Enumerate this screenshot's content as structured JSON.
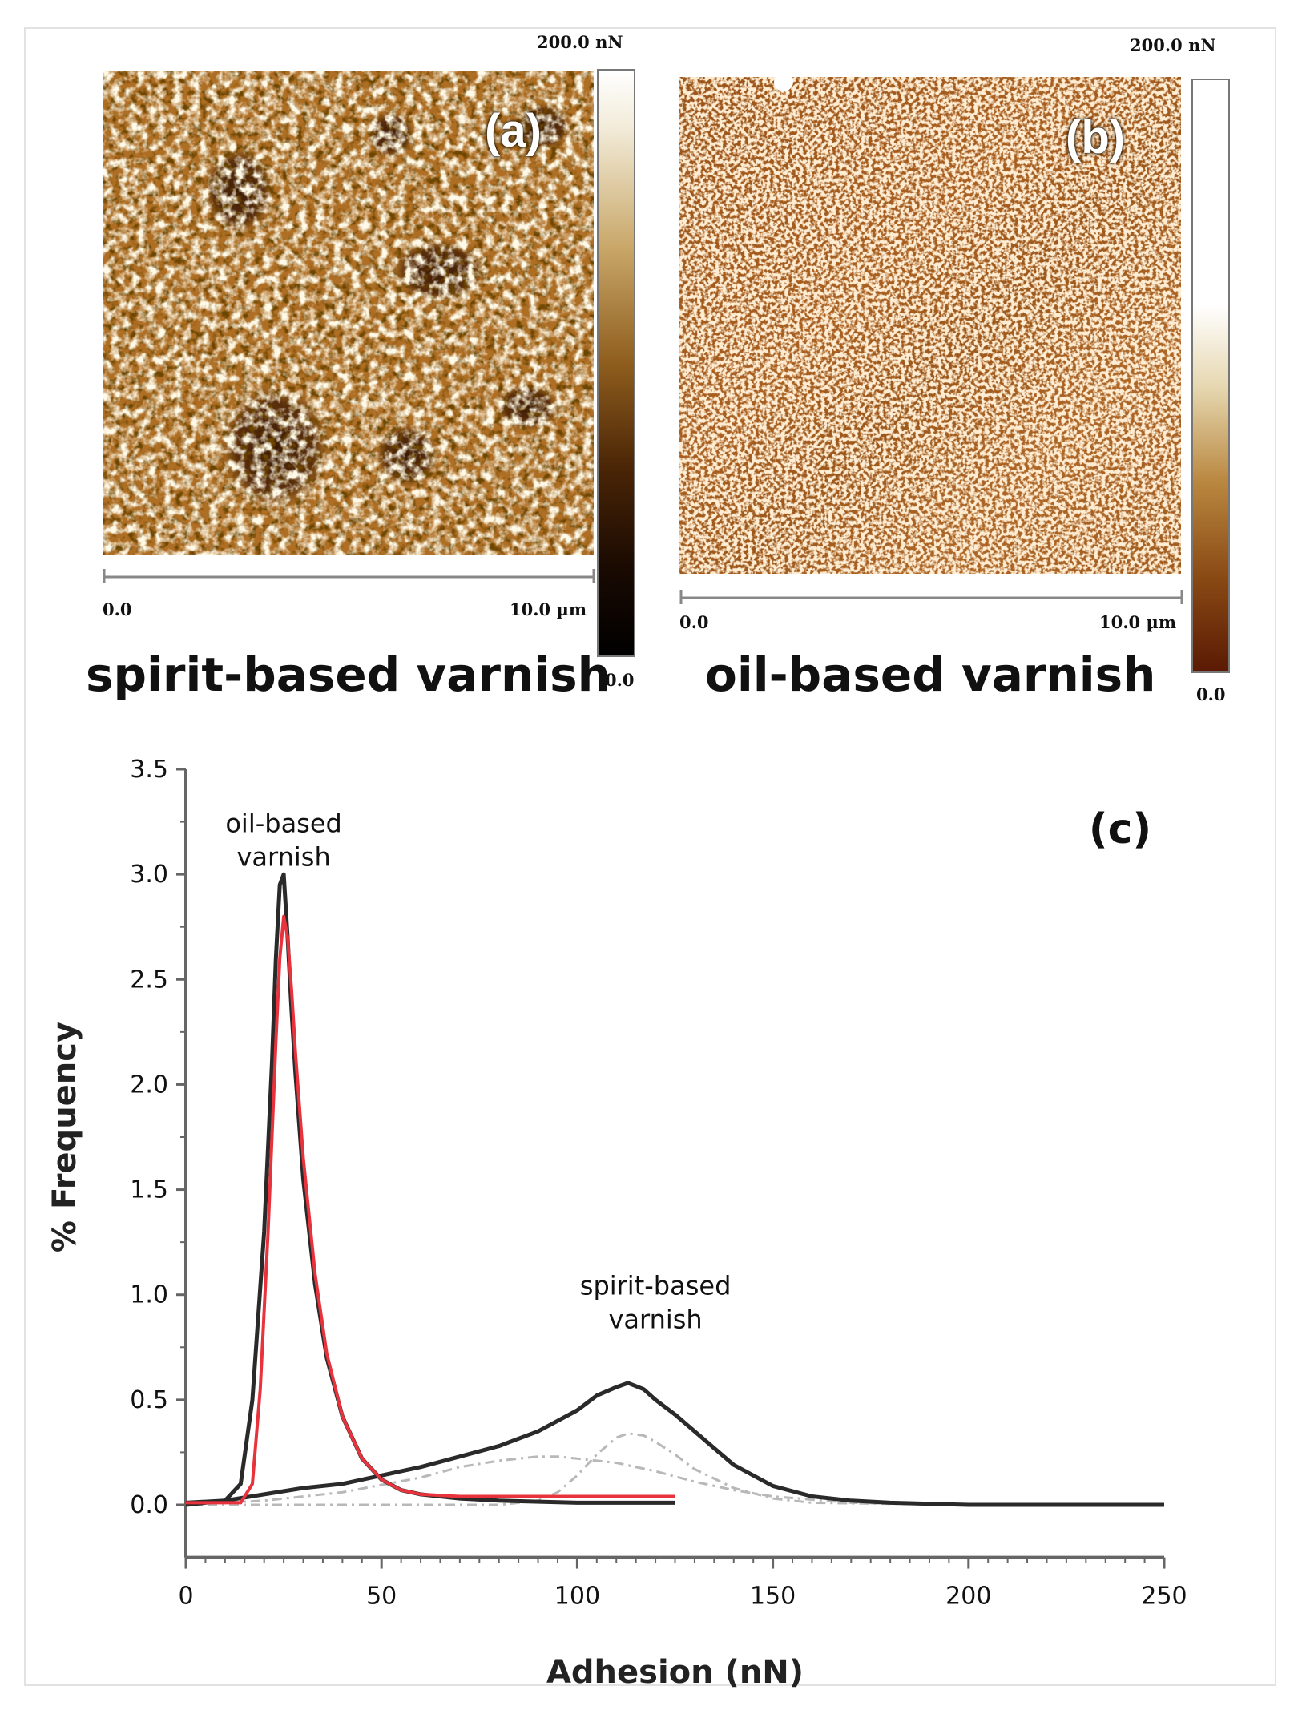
{
  "panel_a": {
    "label": "(a)",
    "caption": "spirit-based varnish",
    "colorbar_top": "200.0 nN",
    "colorbar_bottom": "0.0",
    "scale_start": "0.0",
    "scale_end": "10.0 µm"
  },
  "panel_b": {
    "label": "(b)",
    "caption": "oil-based varnish",
    "colorbar_top": "200.0 nN",
    "colorbar_bottom": "0.0",
    "scale_start": "0.0",
    "scale_end": "10.0 µm"
  },
  "colors": {
    "afm_base": "#a5651e",
    "oil_fit": "#e8323c",
    "data_line": "#2a2a2a",
    "component_line": "#b8b8b8"
  },
  "chart_data": {
    "type": "line",
    "panel_label": "(c)",
    "xlabel": "Adhesion (nN)",
    "ylabel": "% Frequency",
    "xlim": [
      0,
      250
    ],
    "ylim": [
      0,
      3.5
    ],
    "x_ticks": [
      0,
      50,
      100,
      150,
      200,
      250
    ],
    "y_ticks": [
      "0.0",
      "0.5",
      "1.0",
      "1.5",
      "2.0",
      "2.5",
      "3.0",
      "3.5"
    ],
    "annotations": [
      {
        "lines": [
          "oil-based",
          "varnish"
        ],
        "x": 25,
        "y": 3.2
      },
      {
        "lines": [
          "spirit-based",
          "varnish"
        ],
        "x": 120,
        "y": 1.0
      }
    ],
    "series": [
      {
        "role": "oil-based varnish data",
        "x": [
          0,
          10,
          14,
          17,
          20,
          22,
          23,
          24,
          25,
          26,
          27,
          28,
          30,
          33,
          36,
          40,
          45,
          50,
          55,
          60,
          70,
          80,
          100,
          125
        ],
        "y": [
          0.01,
          0.02,
          0.1,
          0.5,
          1.3,
          2.1,
          2.6,
          2.95,
          3.0,
          2.7,
          2.35,
          2.05,
          1.55,
          1.05,
          0.7,
          0.42,
          0.22,
          0.12,
          0.07,
          0.05,
          0.03,
          0.02,
          0.01,
          0.01
        ]
      },
      {
        "role": "oil-based varnish fit",
        "x": [
          0,
          14,
          17,
          19,
          21,
          23,
          24,
          25,
          26,
          27,
          28,
          30,
          33,
          36,
          40,
          45,
          50,
          55,
          60,
          70,
          80,
          100,
          125
        ],
        "y": [
          0.01,
          0.01,
          0.1,
          0.55,
          1.3,
          2.2,
          2.6,
          2.8,
          2.7,
          2.45,
          2.15,
          1.65,
          1.1,
          0.72,
          0.42,
          0.22,
          0.12,
          0.07,
          0.05,
          0.04,
          0.04,
          0.04,
          0.04
        ]
      },
      {
        "role": "spirit-based varnish data",
        "x": [
          0,
          10,
          20,
          30,
          40,
          50,
          60,
          70,
          80,
          90,
          100,
          105,
          110,
          113,
          117,
          120,
          125,
          130,
          135,
          140,
          150,
          160,
          170,
          180,
          200,
          250
        ],
        "y": [
          0.0,
          0.02,
          0.05,
          0.08,
          0.1,
          0.14,
          0.18,
          0.23,
          0.28,
          0.35,
          0.45,
          0.52,
          0.56,
          0.58,
          0.55,
          0.5,
          0.43,
          0.35,
          0.27,
          0.19,
          0.09,
          0.04,
          0.02,
          0.01,
          0.0,
          0.0
        ]
      },
      {
        "role": "spirit-based component 1",
        "x": [
          0,
          20,
          40,
          60,
          70,
          80,
          90,
          95,
          100,
          110,
          120,
          130,
          140,
          150,
          170,
          200,
          250
        ],
        "y": [
          0.0,
          0.02,
          0.06,
          0.13,
          0.18,
          0.21,
          0.23,
          0.23,
          0.22,
          0.2,
          0.16,
          0.11,
          0.07,
          0.04,
          0.01,
          0.0,
          0.0
        ]
      },
      {
        "role": "spirit-based component 2",
        "x": [
          0,
          80,
          90,
          95,
          100,
          105,
          110,
          113,
          117,
          120,
          125,
          130,
          140,
          150,
          160,
          200,
          250
        ],
        "y": [
          0.0,
          0.0,
          0.02,
          0.06,
          0.14,
          0.24,
          0.32,
          0.34,
          0.33,
          0.3,
          0.24,
          0.17,
          0.08,
          0.03,
          0.01,
          0.0,
          0.0
        ]
      }
    ]
  }
}
